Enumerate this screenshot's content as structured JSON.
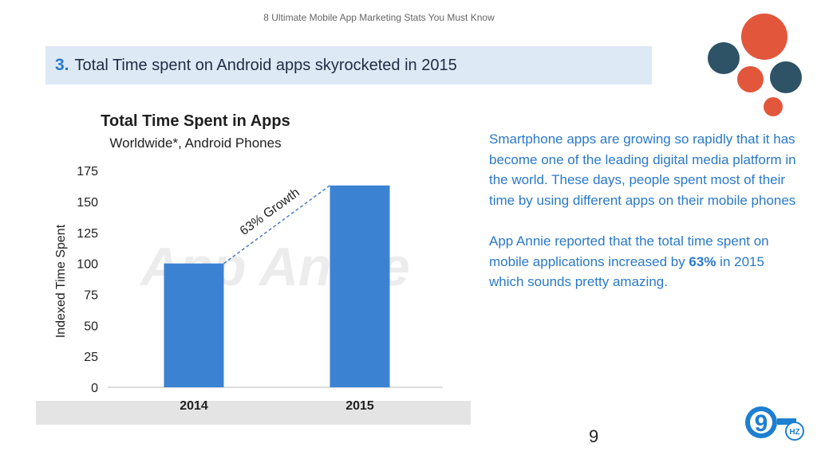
{
  "header": {
    "caption": "8 Ultimate Mobile App Marketing Stats You Must Know",
    "number": "3.",
    "title": "Total Time spent on Android apps skyrocketed in 2015"
  },
  "chart_data": {
    "type": "bar",
    "title": "Total Time Spent in Apps",
    "subtitle": "Worldwide*, Android Phones",
    "ylabel": "Indexed Time Spent",
    "xlabel": "",
    "categories": [
      "2014",
      "2015"
    ],
    "values": [
      100,
      163
    ],
    "ylim": [
      0,
      175
    ],
    "yticks": [
      0,
      25,
      50,
      75,
      100,
      125,
      150,
      175
    ],
    "annotation": "63% Growth",
    "watermark": "App Annie",
    "bar_color": "#3b82d3",
    "grid": false
  },
  "text": {
    "para1": "Smartphone apps are growing so rapidly that it has become one of the leading digital media platform in the world. These days, people spent most of their time by using different apps on their mobile phones",
    "para2_lead": "App Annie reported that the total time spent on mobile applications increased by ",
    "para2_highlight": "63%",
    "para2_tail": " in 2015 which sounds pretty amazing."
  },
  "page_number": "9",
  "logo": {
    "digit": "9",
    "letters": "HZ"
  },
  "colors": {
    "accent_blue": "#2a79c9",
    "orange": "#e2573c",
    "teal": "#2e5266",
    "title_bar": "#dde9f4"
  }
}
